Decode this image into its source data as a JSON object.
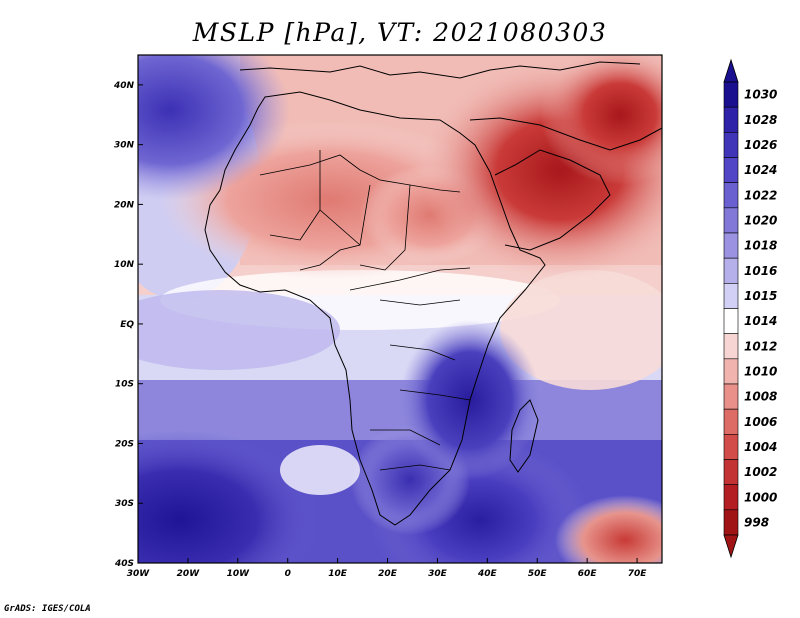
{
  "title": "MSLP [hPa], VT: 2021080303",
  "credit": "GrADS: IGES/COLA",
  "map": {
    "lon_range": [
      -30,
      75
    ],
    "lat_range": [
      -40,
      45
    ],
    "x_ticks": [
      "30W",
      "20W",
      "10W",
      "0",
      "10E",
      "20E",
      "30E",
      "40E",
      "50E",
      "60E",
      "70E"
    ],
    "y_ticks": [
      "40N",
      "30N",
      "20N",
      "10N",
      "EQ",
      "10S",
      "20S",
      "30S",
      "40S"
    ],
    "field": "mean sea level pressure",
    "units": "hPa"
  },
  "colorbar": {
    "levels": [
      "1030",
      "1028",
      "1026",
      "1024",
      "1022",
      "1020",
      "1018",
      "1016",
      "1015",
      "1014",
      "1012",
      "1010",
      "1008",
      "1006",
      "1004",
      "1002",
      "1000",
      "998"
    ],
    "colors": [
      "#1a0f8f",
      "#2e22a8",
      "#4034b8",
      "#5246c6",
      "#6a60d0",
      "#8178d8",
      "#9b93e2",
      "#b5b0ea",
      "#d2d0f4",
      "#ffffff",
      "#f7d5d2",
      "#f0b3ad",
      "#e89089",
      "#de6c66",
      "#d24d4a",
      "#c33333",
      "#b21e22",
      "#a01416"
    ]
  },
  "colors": {
    "high": "#2a1ea0",
    "low": "#b8282a",
    "neutral": "#ffffff"
  }
}
